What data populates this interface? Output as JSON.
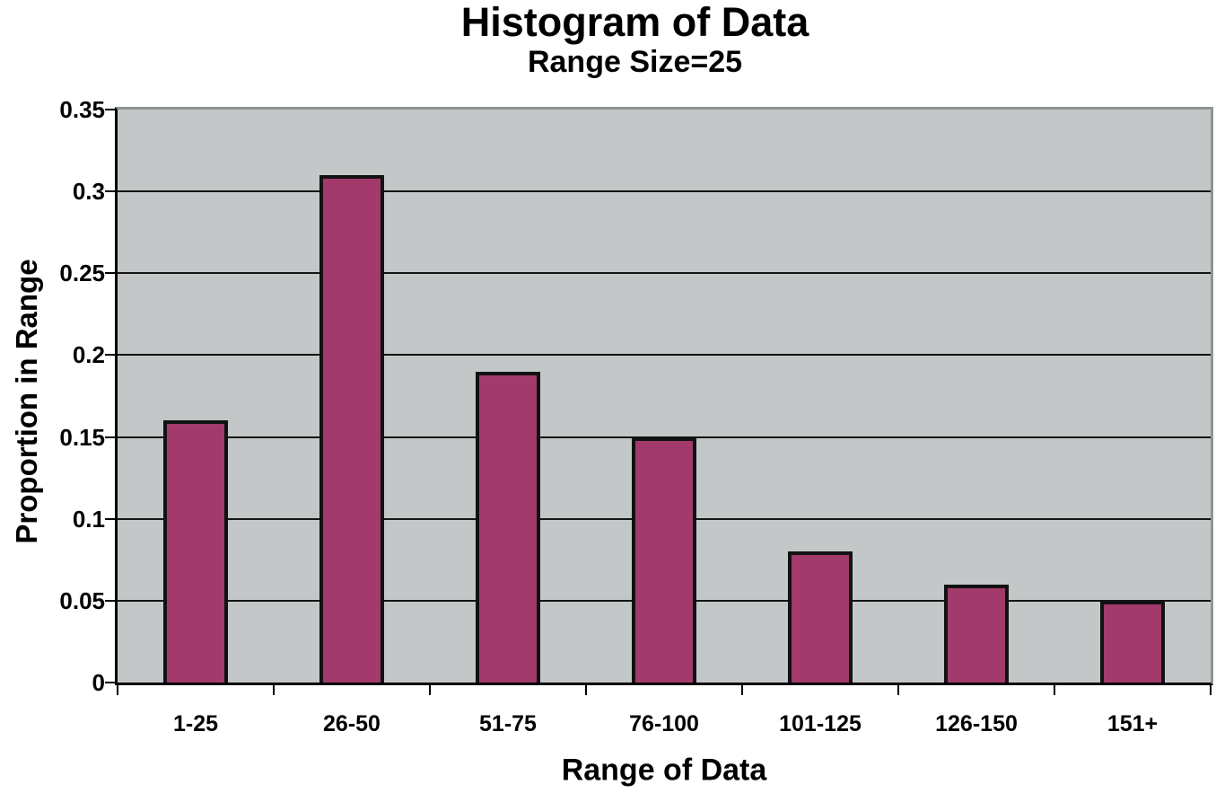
{
  "chart_data": {
    "type": "bar",
    "title": "Histogram of Data",
    "subtitle": "Range Size=25",
    "xlabel": "Range of Data",
    "ylabel": "Proportion in Range",
    "categories": [
      "1-25",
      "26-50",
      "51-75",
      "76-100",
      "101-125",
      "126-150",
      "151+"
    ],
    "values": [
      0.16,
      0.31,
      0.19,
      0.15,
      0.08,
      0.06,
      0.05
    ],
    "ylim": [
      0,
      0.35
    ],
    "yticks": [
      0,
      0.05,
      0.1,
      0.15,
      0.2,
      0.25,
      0.3,
      0.35
    ],
    "ytick_labels": [
      "0",
      "0.05",
      "0.1",
      "0.15",
      "0.2",
      "0.25",
      "0.3",
      "0.35"
    ],
    "gridlines": [
      0.05,
      0.1,
      0.15,
      0.2,
      0.25,
      0.3
    ],
    "grid": "on",
    "legend": "none",
    "colors": {
      "page_background": "#ffffff",
      "plot_background": "#c3c7c7",
      "plot_border": "#8f9595",
      "gridline": "#151515",
      "axis": "#000000",
      "bar_fill": "#a23a6b",
      "bar_border": "#121212",
      "text": "#000000"
    }
  }
}
